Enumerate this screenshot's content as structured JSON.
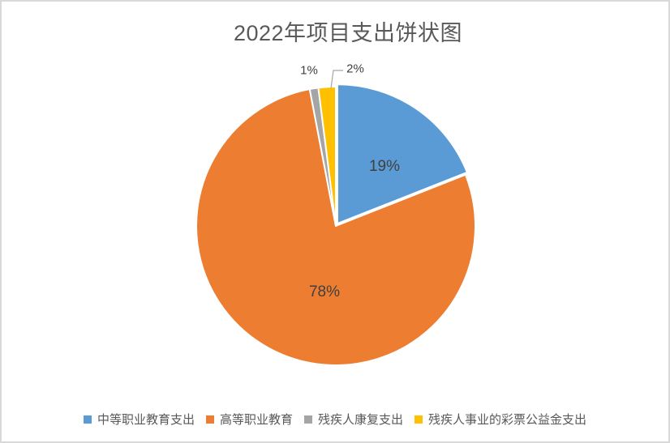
{
  "chart_data": {
    "type": "pie",
    "title": "2022年项目支出饼状图",
    "categories": [
      "中等职业教育支出",
      "高等职业教育",
      "残疾人康复支出",
      "残疾人事业的彩票公益金支出"
    ],
    "values": [
      19,
      78,
      1,
      2
    ],
    "unit": "percent",
    "labels": [
      "19%",
      "78%",
      "1%",
      "2%"
    ],
    "colors": [
      "#5B9BD5",
      "#ED7D31",
      "#A5A5A5",
      "#FFC000"
    ],
    "start_angle_deg": 0,
    "direction": "clockwise",
    "exploded_slice_index": 0,
    "legend_position": "bottom",
    "title_color": "#595959",
    "label_color": "#404040",
    "leader_line_color": "#A6A6A6",
    "border_color": "#D9D9D9"
  }
}
